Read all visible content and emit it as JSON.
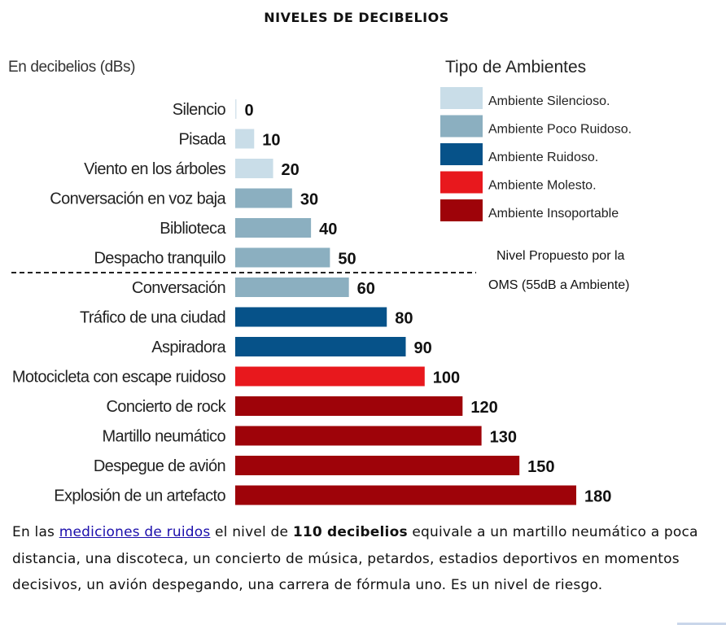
{
  "title": "NIVELES DE DECIBELIOS",
  "chart_data": {
    "type": "bar",
    "orientation": "horizontal",
    "unit_label": "En decibelios (dBs)",
    "xlim": [
      0,
      180
    ],
    "grid": false,
    "categories": [
      "Silencio",
      "Pisada",
      "Viento en los árboles",
      "Conversación en voz baja",
      "Biblioteca",
      "Despacho tranquilo",
      "Conversación",
      "Tráfico de una ciudad",
      "Aspiradora",
      "Motocicleta con escape ruidoso",
      "Concierto de rock",
      "Martillo neumático",
      "Despegue de avión",
      "Explosión de un artefacto"
    ],
    "values": [
      0,
      10,
      20,
      30,
      40,
      50,
      60,
      80,
      90,
      100,
      120,
      130,
      150,
      180
    ],
    "value_labels": [
      "0",
      "10",
      "20",
      "30",
      "40",
      "50",
      "60",
      "80",
      "90",
      "100",
      "120",
      "130",
      "150",
      "180"
    ],
    "types": [
      0,
      0,
      0,
      1,
      1,
      1,
      1,
      2,
      2,
      3,
      4,
      4,
      4,
      4
    ],
    "legend": {
      "title": "Tipo de Ambientes",
      "placement": "top-right",
      "entries": [
        {
          "label": "Ambiente Silencioso.",
          "color": "#c9dde8"
        },
        {
          "label": "Ambiente Poco Ruidoso.",
          "color": "#8bafc0"
        },
        {
          "label": "Ambiente Ruidoso.",
          "color": "#065289"
        },
        {
          "label": "Ambiente Molesto.",
          "color": "#e8181d"
        },
        {
          "label": "Ambiente Insoportable",
          "color": "#9e0309"
        }
      ]
    },
    "reference_line": {
      "value": 55,
      "style": "dashed",
      "label_lines": [
        "Nivel Propuesto por la",
        "OMS (55dB a Ambiente)"
      ]
    }
  },
  "paragraph": {
    "before_link": "En las ",
    "link": "mediciones de ruidos",
    "after_link": " el nivel de ",
    "bold": "110 decibelios",
    "rest": " equivale a un martillo neumático a poca distancia, una discoteca, un concierto de música, petardos, estadios deportivos en momentos decisivos, un avión despegando, una carrera de fórmula uno. Es un nivel de riesgo."
  }
}
